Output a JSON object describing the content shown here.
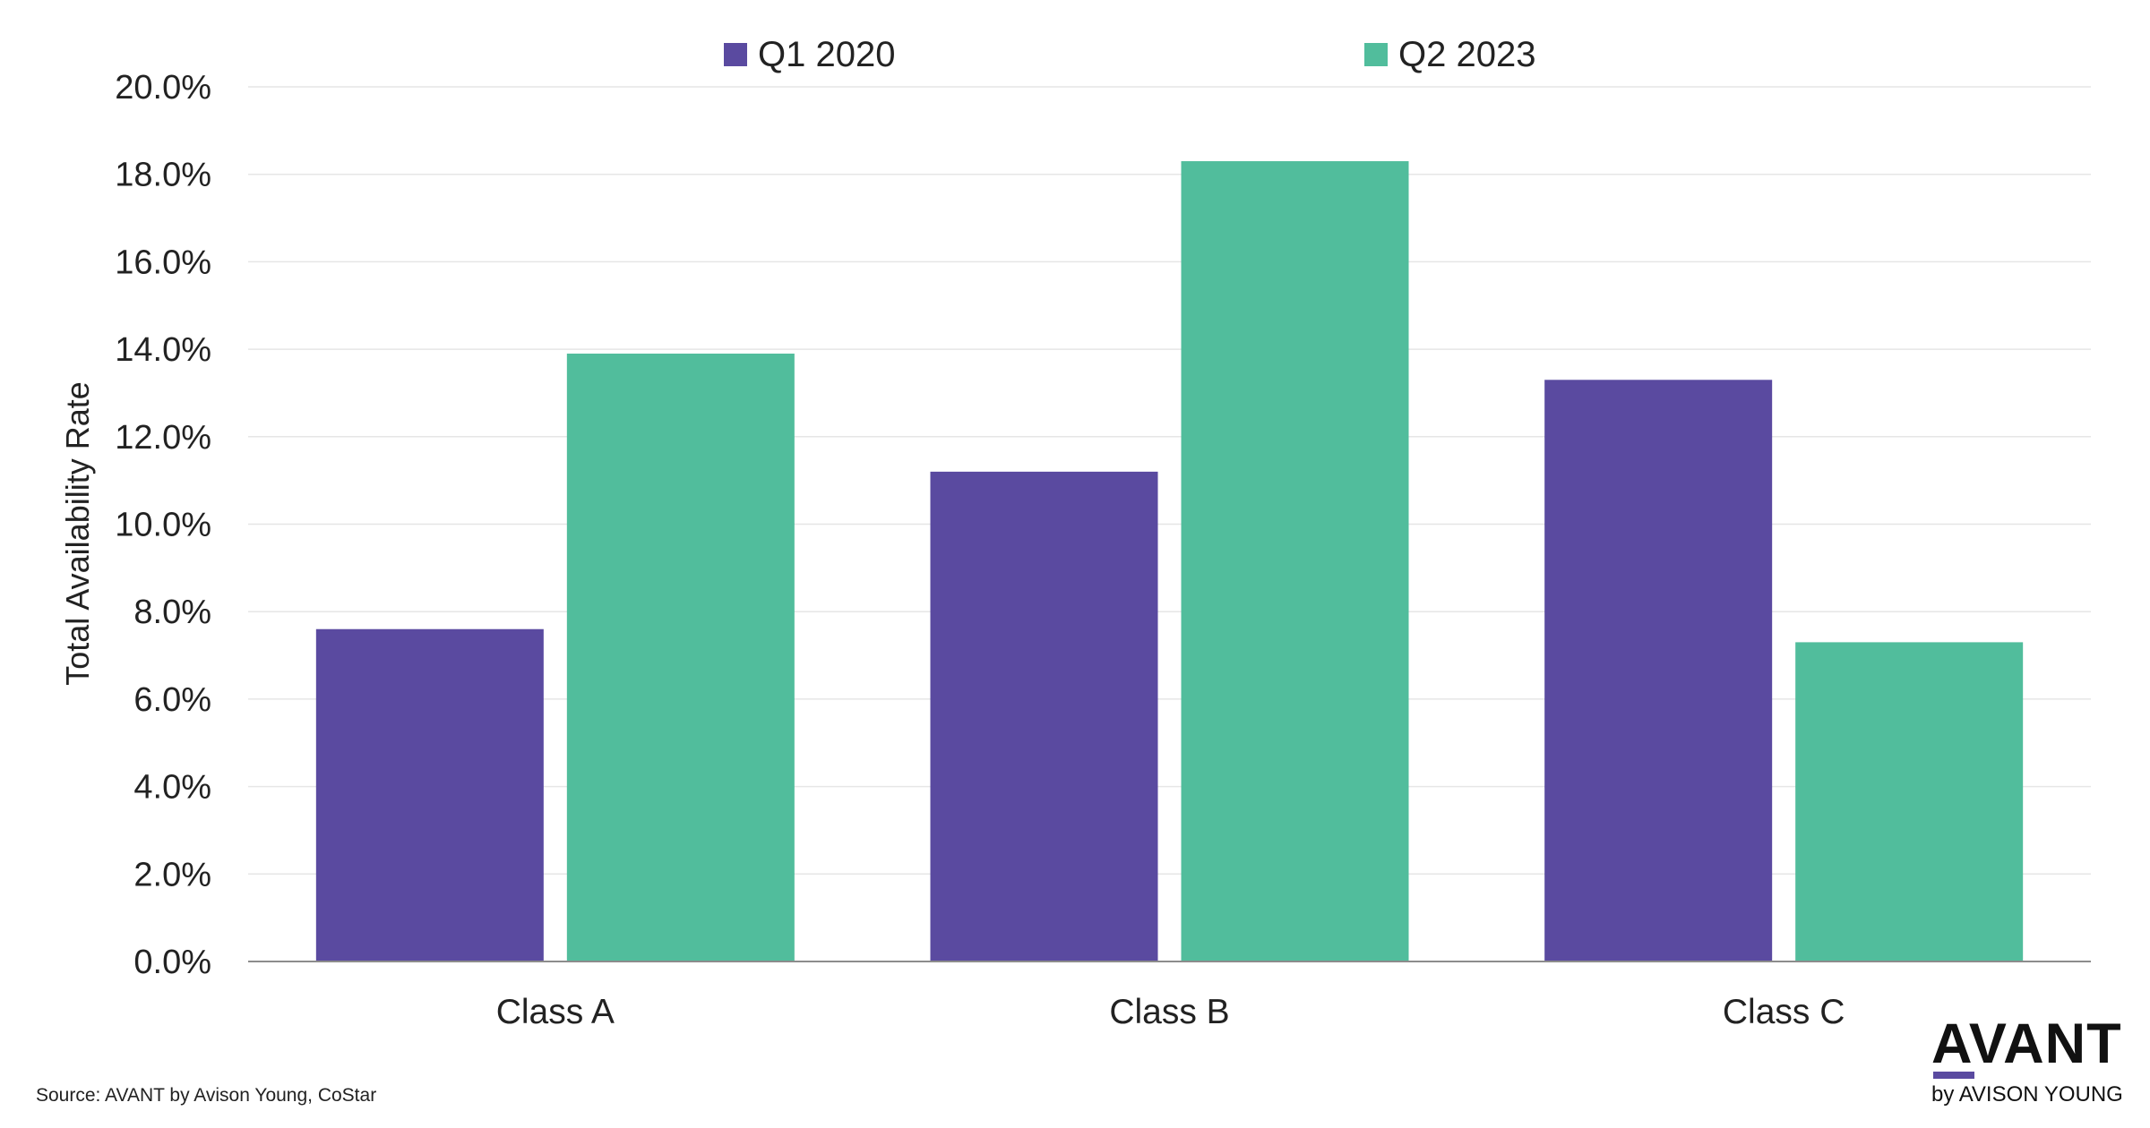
{
  "chart_data": {
    "type": "bar",
    "categories": [
      "Class A",
      "Class B",
      "Class C"
    ],
    "series": [
      {
        "name": "Q1 2020",
        "color": "#5a4aa0",
        "values": [
          7.6,
          11.2,
          13.3
        ]
      },
      {
        "name": "Q2 2023",
        "color": "#51bd9c",
        "values": [
          13.9,
          18.3,
          7.3
        ]
      }
    ],
    "ylabel": "Total Availability Rate",
    "xlabel": "",
    "ylim": [
      0,
      20
    ],
    "yticks": [
      "0.0%",
      "2.0%",
      "4.0%",
      "6.0%",
      "8.0%",
      "10.0%",
      "12.0%",
      "14.0%",
      "16.0%",
      "18.0%",
      "20.0%"
    ],
    "grid": true,
    "legend_position": "top-center"
  },
  "source": "Source: AVANT by Avison Young, CoStar",
  "brand": {
    "name": "AVANT",
    "subtitle": "by AVISON YOUNG",
    "accent_color": "#5a4aa0"
  }
}
